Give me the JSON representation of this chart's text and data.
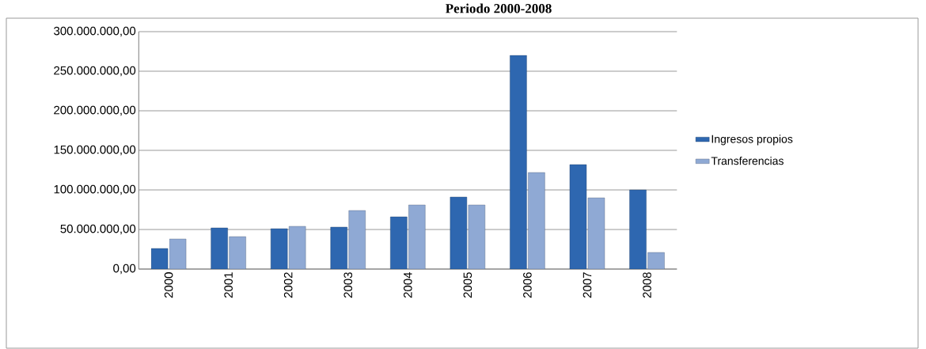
{
  "chart_data": {
    "type": "bar",
    "title": "Periodo 2000-2008",
    "categories": [
      "2000",
      "2001",
      "2002",
      "2003",
      "2004",
      "2005",
      "2006",
      "2007",
      "2008"
    ],
    "series": [
      {
        "name": "Ingresos propios",
        "color": "#2e67b0",
        "values": [
          26000000,
          52000000,
          51000000,
          53000000,
          66000000,
          91000000,
          270000000,
          132000000,
          100000000
        ]
      },
      {
        "name": "Transferencias",
        "color": "#8fa9d4",
        "values": [
          38000000,
          41000000,
          54000000,
          74000000,
          81000000,
          81000000,
          122000000,
          90000000,
          21000000
        ]
      }
    ],
    "ylim": [
      0,
      300000000
    ],
    "yticks": [
      {
        "value": 0,
        "label": "0,00"
      },
      {
        "value": 50000000,
        "label": "50.000.000,00"
      },
      {
        "value": 100000000,
        "label": "100.000.000,00"
      },
      {
        "value": 150000000,
        "label": "150.000.000,00"
      },
      {
        "value": 200000000,
        "label": "200.000.000,00"
      },
      {
        "value": 250000000,
        "label": "250.000.000,00"
      },
      {
        "value": 300000000,
        "label": "300.000.000,00"
      }
    ],
    "grid": "y",
    "legend": "right"
  }
}
